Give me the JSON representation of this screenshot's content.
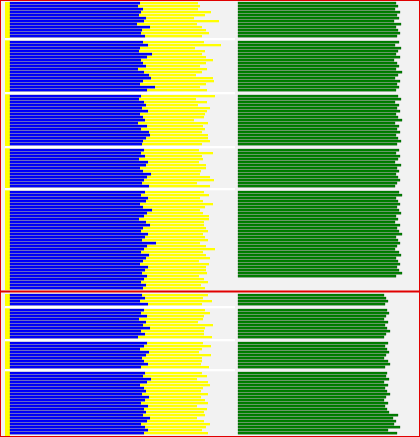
{
  "chart_data": [
    {
      "type": "bar",
      "orientation": "horizontal",
      "xlim": [
        0,
        420
      ],
      "series": [
        {
          "color": "#0000ff",
          "values": [
            130,
            128,
            133,
            131,
            129,
            136,
            134,
            127,
            140,
            132,
            131,
            135,
            null,
            133,
            138,
            130,
            129,
            142,
            137,
            131,
            133,
            136,
            128,
            134,
            139,
            141,
            133,
            130,
            145,
            137,
            null,
            131,
            129,
            134,
            136,
            132,
            138,
            130,
            133,
            135,
            128,
            137,
            131,
            139,
            140,
            136,
            133,
            132,
            null,
            134,
            131,
            135,
            129,
            138,
            136,
            130,
            133,
            141,
            137,
            134,
            132,
            139,
            null,
            135,
            131,
            138,
            136,
            130,
            133,
            142,
            137,
            134,
            129,
            136,
            140,
            133,
            131,
            138,
            135,
            132,
            146,
            137,
            134,
            131,
            139,
            136,
            133,
            130,
            138,
            135,
            132,
            137,
            134,
            131,
            136,
            133
          ]
        },
        {
          "color": "#ffff00",
          "values": [
            58,
            62,
            55,
            70,
            66,
            48,
            75,
            60,
            52,
            64,
            68,
            57,
            null,
            61,
            73,
            55,
            66,
            50,
            59,
            72,
            63,
            54,
            69,
            58,
            47,
            62,
            71,
            66,
            45,
            60,
            null,
            74,
            57,
            63,
            52,
            68,
            59,
            65,
            61,
            49,
            70,
            56,
            64,
            53,
            58,
            62,
            67,
            60,
            null,
            55,
            72,
            57,
            64,
            51,
            60,
            66,
            58,
            49,
            63,
            70,
            55,
            61,
            null,
            59,
            68,
            52,
            57,
            73,
            62,
            48,
            56,
            65,
            70,
            58,
            54,
            63,
            67,
            55,
            60,
            66,
            44,
            59,
            71,
            62,
            57,
            64,
            56,
            69,
            58,
            61,
            65,
            52,
            60,
            67,
            55,
            62
          ]
        },
        {
          "color": "#008000",
          "values": [
            158,
            160,
            157,
            162,
            159,
            161,
            156,
            163,
            158,
            160,
            162,
            159,
            null,
            161,
            157,
            163,
            160,
            158,
            162,
            156,
            159,
            161,
            158,
            164,
            160,
            157,
            162,
            159,
            161,
            158,
            null,
            160,
            163,
            157,
            161,
            159,
            162,
            158,
            160,
            164,
            157,
            161,
            159,
            162,
            158,
            160,
            163,
            159,
            null,
            161,
            158,
            162,
            160,
            157,
            163,
            159,
            161,
            158,
            160,
            162,
            159,
            157,
            null,
            161,
            164,
            158,
            160,
            162,
            159,
            161,
            163,
            158,
            160,
            157,
            162,
            159,
            161,
            164,
            158,
            160,
            162,
            159,
            157,
            161,
            163,
            158,
            160,
            162,
            159,
            161,
            164,
            158,
            null,
            null,
            null,
            null
          ]
        }
      ]
    },
    {
      "type": "bar",
      "orientation": "horizontal",
      "xlim": [
        0,
        420
      ],
      "series": [
        {
          "color": "#0000ff",
          "values": [
            132,
            135,
            130,
            138,
            null,
            134,
            131,
            137,
            129,
            136,
            133,
            140,
            131,
            135,
            128,
            null,
            137,
            134,
            130,
            139,
            136,
            132,
            134,
            138,
            131,
            null,
            135,
            133,
            141,
            137,
            130,
            134,
            136,
            132,
            139,
            135,
            131,
            138,
            134,
            136,
            133,
            140,
            137,
            131,
            135,
            138,
            134
          ]
        },
        {
          "color": "#ffff00",
          "values": [
            66,
            58,
            72,
            54,
            null,
            61,
            69,
            57,
            64,
            52,
            70,
            55,
            63,
            59,
            74,
            null,
            56,
            67,
            62,
            50,
            65,
            60,
            58,
            53,
            68,
            null,
            57,
            64,
            46,
            61,
            70,
            59,
            55,
            66,
            52,
            60,
            67,
            49,
            63,
            58,
            62,
            47,
            57,
            69,
            61,
            54,
            64
          ]
        },
        {
          "color": "#008000",
          "values": [
            146,
            148,
            150,
            147,
            null,
            149,
            151,
            148,
            146,
            150,
            147,
            149,
            152,
            148,
            146,
            null,
            150,
            147,
            149,
            151,
            148,
            146,
            150,
            152,
            147,
            null,
            149,
            148,
            151,
            146,
            150,
            147,
            149,
            152,
            148,
            146,
            150,
            147,
            149,
            151,
            160,
            155,
            158,
            156,
            162,
            150,
            159
          ]
        }
      ]
    }
  ]
}
